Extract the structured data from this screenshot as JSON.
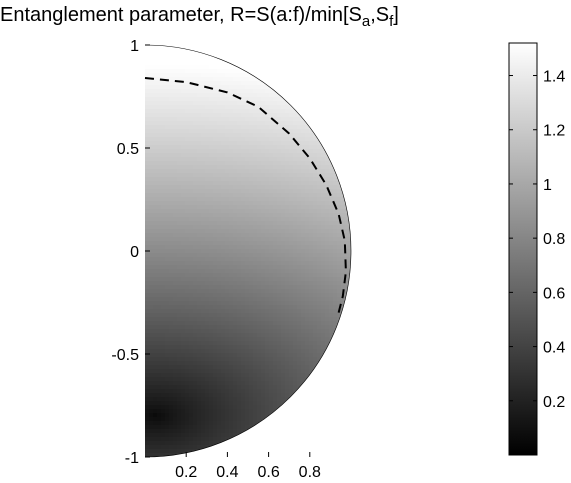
{
  "chart_data": {
    "type": "heatmap",
    "title": {
      "prefix": "Entanglement parameter, R=S(a:f)/min[S",
      "sub1": "a",
      "mid": ",S",
      "sub2": "f",
      "suffix": "]"
    },
    "domain": "right half of unit disk",
    "xlim": [
      0,
      1
    ],
    "ylim": [
      -1,
      1
    ],
    "x_ticks": [
      "0.2",
      "0.4",
      "0.6",
      "0.8"
    ],
    "x_tick_values": [
      0.2,
      0.4,
      0.6,
      0.8
    ],
    "y_ticks": [
      "1",
      "0.5",
      "0",
      "-0.5",
      "-1"
    ],
    "y_tick_values": [
      1,
      0.5,
      0,
      -0.5,
      -1
    ],
    "colormap": "gray",
    "colorbar": {
      "range": [
        0,
        1.52
      ],
      "ticks": [
        "1.4",
        "1.2",
        "1",
        "0.8",
        "0.6",
        "0.4",
        "0.2"
      ],
      "tick_values": [
        1.4,
        1.2,
        1.0,
        0.8,
        0.6,
        0.4,
        0.2
      ]
    },
    "field": {
      "minimum_location": [
        0.05,
        -0.8
      ],
      "min_value": 0.0,
      "max_value": 1.52,
      "contour_value": 1.0,
      "contour_style": "dashed"
    },
    "contour_points": [
      [
        0.0,
        0.84
      ],
      [
        0.2,
        0.82
      ],
      [
        0.4,
        0.77
      ],
      [
        0.55,
        0.7
      ],
      [
        0.7,
        0.57
      ],
      [
        0.8,
        0.45
      ],
      [
        0.88,
        0.32
      ],
      [
        0.94,
        0.18
      ],
      [
        0.97,
        0.05
      ],
      [
        0.975,
        -0.1
      ],
      [
        0.96,
        -0.22
      ],
      [
        0.94,
        -0.3
      ]
    ]
  }
}
